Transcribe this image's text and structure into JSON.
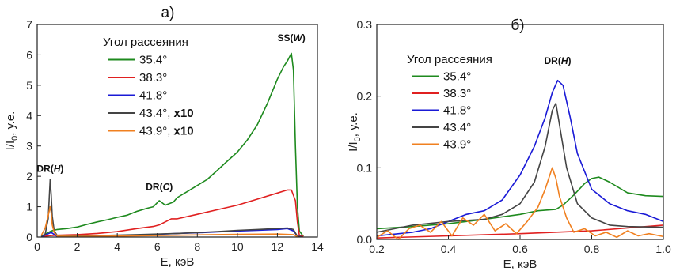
{
  "chart_data": [
    {
      "type": "line",
      "panel_label": "а)",
      "xlabel": "E, кэВ",
      "ylabel": "I/I",
      "ylabel_sub": "0",
      "ylabel_suffix": ", у.е.",
      "xlim": [
        0,
        14
      ],
      "ylim": [
        0,
        7
      ],
      "xticks": [
        0,
        2,
        4,
        6,
        8,
        10,
        12,
        14
      ],
      "yticks": [
        0,
        1,
        2,
        3,
        4,
        5,
        6,
        7
      ],
      "legend_title": "Угол рассеяния",
      "legend_position": "top-left",
      "annotations": [
        {
          "text": "SS(W)",
          "prefix": "SS(",
          "italic": "W",
          "suffix": ")",
          "x": 12.7,
          "y": 6.45
        },
        {
          "text": "DR(C)",
          "prefix": "DR(",
          "italic": "C",
          "suffix": ")",
          "x": 6.1,
          "y": 1.55
        },
        {
          "text": "DR(H)",
          "prefix": "DR(",
          "italic": "H",
          "suffix": ")",
          "x": 0.65,
          "y": 2.15
        }
      ],
      "series": [
        {
          "name": "35.4°",
          "bold_suffix": "",
          "color": "#1e8a1e",
          "x": [
            0.2,
            0.4,
            0.7,
            1.0,
            1.5,
            2,
            2.5,
            3,
            3.5,
            4,
            4.5,
            5,
            5.5,
            5.8,
            6.1,
            6.4,
            6.8,
            7,
            7.5,
            8,
            8.5,
            9,
            9.5,
            10,
            10.5,
            11,
            11.5,
            12,
            12.3,
            12.5,
            12.7,
            12.8,
            12.9,
            13.0,
            13.1,
            13.3
          ],
          "y": [
            0.02,
            0.1,
            0.2,
            0.25,
            0.28,
            0.33,
            0.42,
            0.5,
            0.57,
            0.65,
            0.72,
            0.85,
            0.95,
            1.0,
            1.2,
            1.05,
            1.15,
            1.3,
            1.5,
            1.7,
            1.9,
            2.2,
            2.5,
            2.8,
            3.2,
            3.7,
            4.4,
            5.2,
            5.6,
            5.8,
            6.05,
            5.5,
            3.0,
            1.0,
            0.2,
            0.02
          ]
        },
        {
          "name": "38.3°",
          "bold_suffix": "",
          "color": "#e02020",
          "x": [
            0.2,
            0.7,
            1,
            2,
            3,
            4,
            5,
            5.8,
            6.1,
            6.4,
            6.7,
            7,
            8,
            9,
            10,
            11,
            12,
            12.5,
            12.7,
            12.9,
            13.0,
            13.1,
            13.3
          ],
          "y": [
            0.01,
            0.05,
            0.06,
            0.08,
            0.12,
            0.18,
            0.28,
            0.35,
            0.4,
            0.5,
            0.6,
            0.6,
            0.75,
            0.9,
            1.05,
            1.25,
            1.45,
            1.55,
            1.55,
            1.2,
            0.5,
            0.05,
            0.02
          ]
        },
        {
          "name": "41.8°",
          "bold_suffix": "",
          "color": "#1a1ad6",
          "x": [
            0.2,
            0.7,
            1,
            3,
            5,
            6,
            7,
            8,
            9,
            10,
            11,
            12,
            12.5,
            12.8,
            13.0,
            13.2
          ],
          "y": [
            0.01,
            0.15,
            0.02,
            0.04,
            0.07,
            0.09,
            0.12,
            0.14,
            0.17,
            0.2,
            0.22,
            0.25,
            0.28,
            0.2,
            0.03,
            0.01
          ]
        },
        {
          "name": "43.4°,",
          "bold_suffix": "x10",
          "color": "#444444",
          "x": [
            0.2,
            0.4,
            0.55,
            0.65,
            0.7,
            0.75,
            0.85,
            1.0,
            1.5,
            3,
            5,
            7,
            9,
            10,
            11,
            12,
            12.5,
            12.8,
            13.0,
            13.2
          ],
          "y": [
            0.02,
            0.1,
            0.6,
            1.9,
            1.4,
            0.7,
            0.2,
            0.05,
            0.04,
            0.05,
            0.08,
            0.12,
            0.18,
            0.22,
            0.25,
            0.28,
            0.3,
            0.25,
            0.02,
            0.01
          ]
        },
        {
          "name": "43.9°,",
          "bold_suffix": "x10",
          "color": "#f08020",
          "x": [
            0.2,
            0.4,
            0.55,
            0.65,
            0.7,
            0.75,
            0.85,
            1.0,
            2,
            4,
            6,
            8,
            10,
            12,
            12.8,
            13.0
          ],
          "y": [
            0.05,
            0.3,
            0.7,
            1.0,
            0.8,
            0.4,
            0.15,
            0.03,
            0.02,
            0.03,
            0.05,
            0.07,
            0.09,
            0.1,
            0.08,
            0.01
          ]
        }
      ]
    },
    {
      "type": "line",
      "panel_label": "б)",
      "xlabel": "E, кэВ",
      "ylabel": "I/I",
      "ylabel_sub": "0",
      "ylabel_suffix": ", у.е.",
      "xlim": [
        0.2,
        1.0
      ],
      "ylim": [
        0,
        0.3
      ],
      "xticks": [
        0.2,
        0.4,
        0.6,
        0.8,
        1.0
      ],
      "xtick_labels": [
        "0.2",
        "0.4",
        "0.6",
        "0.8",
        "1.0"
      ],
      "yticks": [
        0.0,
        0.1,
        0.2,
        0.3
      ],
      "ytick_labels": [
        "0.0",
        "0.1",
        "0.2",
        "0.3"
      ],
      "legend_title": "Угол рассеяния",
      "legend_position": "top-left",
      "annotations": [
        {
          "text": "DR(H)",
          "prefix": "DR(",
          "italic": "H",
          "suffix": ")",
          "x": 0.705,
          "y": 0.245
        }
      ],
      "series": [
        {
          "name": "35.4°",
          "color": "#1e8a1e",
          "x": [
            0.2,
            0.3,
            0.4,
            0.5,
            0.6,
            0.65,
            0.7,
            0.72,
            0.75,
            0.78,
            0.8,
            0.82,
            0.85,
            0.9,
            0.95,
            1.0
          ],
          "y": [
            0.015,
            0.018,
            0.022,
            0.028,
            0.035,
            0.04,
            0.042,
            0.048,
            0.062,
            0.078,
            0.085,
            0.087,
            0.08,
            0.065,
            0.061,
            0.06
          ]
        },
        {
          "name": "38.3°",
          "color": "#e02020",
          "x": [
            0.2,
            0.4,
            0.6,
            0.8,
            0.9,
            1.0
          ],
          "y": [
            0.002,
            0.005,
            0.008,
            0.012,
            0.016,
            0.02
          ]
        },
        {
          "name": "41.8°",
          "color": "#1a1ad6",
          "x": [
            0.2,
            0.3,
            0.35,
            0.4,
            0.45,
            0.5,
            0.55,
            0.6,
            0.64,
            0.67,
            0.69,
            0.705,
            0.72,
            0.74,
            0.76,
            0.8,
            0.85,
            0.9,
            0.95,
            1.0
          ],
          "y": [
            0.005,
            0.01,
            0.015,
            0.025,
            0.035,
            0.04,
            0.055,
            0.09,
            0.13,
            0.17,
            0.205,
            0.222,
            0.215,
            0.17,
            0.12,
            0.07,
            0.05,
            0.04,
            0.035,
            0.025
          ]
        },
        {
          "name": "43.4°",
          "color": "#444444",
          "x": [
            0.2,
            0.3,
            0.4,
            0.5,
            0.55,
            0.6,
            0.64,
            0.67,
            0.69,
            0.7,
            0.71,
            0.73,
            0.76,
            0.8,
            0.85,
            0.9,
            1.0
          ],
          "y": [
            0.01,
            0.02,
            0.025,
            0.028,
            0.035,
            0.05,
            0.08,
            0.13,
            0.18,
            0.19,
            0.16,
            0.1,
            0.05,
            0.03,
            0.02,
            0.018,
            0.017
          ]
        },
        {
          "name": "43.9°",
          "color": "#f08020",
          "x": [
            0.2,
            0.23,
            0.26,
            0.29,
            0.32,
            0.35,
            0.38,
            0.41,
            0.44,
            0.47,
            0.5,
            0.53,
            0.56,
            0.59,
            0.62,
            0.65,
            0.67,
            0.69,
            0.7,
            0.71,
            0.73,
            0.75,
            0.78,
            0.81,
            0.84,
            0.87,
            0.9,
            0.93,
            0.96,
            1.0
          ],
          "y": [
            0.003,
            0.012,
            0.0,
            0.015,
            0.02,
            0.01,
            0.025,
            0.005,
            0.03,
            0.02,
            0.035,
            0.012,
            0.022,
            0.008,
            0.025,
            0.045,
            0.07,
            0.1,
            0.085,
            0.06,
            0.03,
            0.01,
            0.015,
            0.005,
            0.01,
            0.003,
            0.012,
            0.005,
            0.008,
            0.004
          ]
        }
      ]
    }
  ]
}
